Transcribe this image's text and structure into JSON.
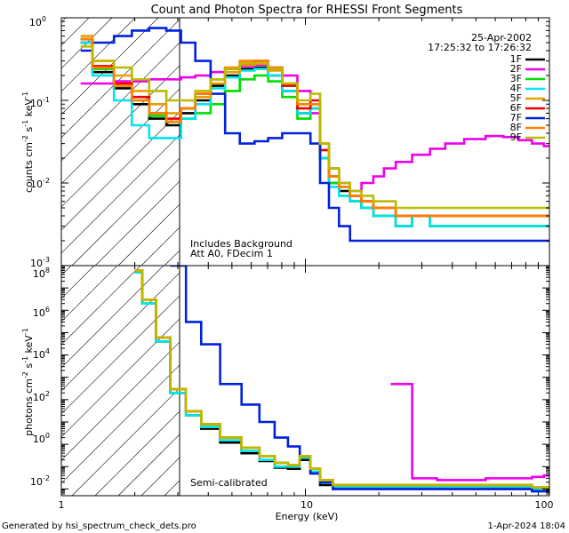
{
  "title": "Count and Photon Spectra for RHESSI Front Segments",
  "date_label": "25-Apr-2002",
  "time_range": "17:25:32 to 17:26:32",
  "footer_left": "Generated by hsi_spectrum_check_dets.pro",
  "footer_right": "1-Apr-2024 18:04",
  "xlabel": "Energy (keV)",
  "colors": {
    "1F": "#000000",
    "2F": "#ee00ee",
    "3F": "#00dd00",
    "4F": "#00e5ee",
    "5F": "#e8a000",
    "6F": "#ee0000",
    "7F": "#0022dd",
    "8F": "#ff8000",
    "9F": "#bbbb00"
  },
  "chart_data": [
    {
      "type": "line",
      "name": "count-spectra",
      "ylabel_main": "counts cm",
      "ylabel_units": "s",
      "ylabel_tail": " keV",
      "ylabel_exp": "-2",
      "ylabel_exp2": "-1",
      "ylabel_exp3": "-1",
      "xscale": "log",
      "yscale": "log",
      "xlim": [
        1,
        100
      ],
      "ylim": [
        0.001,
        1
      ],
      "x_tick_labels": [
        "1",
        "10",
        "100"
      ],
      "y_tick_labels": [
        "10^-3",
        "10^-2",
        "10^-1",
        "10^0"
      ],
      "annotations": [
        "Includes Background",
        "Att A0, FDecim  1"
      ],
      "legend_location": "top-right",
      "x": [
        1.2,
        1.5,
        1.8,
        2.1,
        2.5,
        2.9,
        3.3,
        3.8,
        4.4,
        5.0,
        5.8,
        6.6,
        7.5,
        8.6,
        10.0,
        11.0,
        12.0,
        13.0,
        14.5,
        16.0,
        18.0,
        20.0,
        22.0,
        25.0,
        30.0,
        35.0,
        40.0,
        50.0,
        60.0,
        70.0,
        80.0,
        90.0,
        100.0
      ],
      "series": [
        {
          "name": "1F",
          "values": [
            0.5,
            0.22,
            0.14,
            0.09,
            0.06,
            0.05,
            0.07,
            0.1,
            0.15,
            0.2,
            0.24,
            0.25,
            0.2,
            0.13,
            0.07,
            0.08,
            0.02,
            0.01,
            0.008,
            0.006,
            0.005,
            0.004,
            0.004,
            0.003,
            0.004,
            0.003,
            0.003,
            0.003,
            0.003,
            0.003,
            0.003,
            0.003,
            0.003
          ]
        },
        {
          "name": "2F",
          "values": [
            0.16,
            0.16,
            0.17,
            0.17,
            0.18,
            0.18,
            0.19,
            0.2,
            0.22,
            0.24,
            0.26,
            0.27,
            0.25,
            0.2,
            0.13,
            0.07,
            0.03,
            0.015,
            0.01,
            0.008,
            0.01,
            0.012,
            0.015,
            0.018,
            0.022,
            0.026,
            0.03,
            0.034,
            0.037,
            0.036,
            0.033,
            0.03,
            0.028
          ]
        },
        {
          "name": "3F",
          "values": [
            0.55,
            0.24,
            0.15,
            0.1,
            0.065,
            0.055,
            0.06,
            0.07,
            0.09,
            0.13,
            0.18,
            0.2,
            0.17,
            0.11,
            0.06,
            0.08,
            0.02,
            0.01,
            0.007,
            0.006,
            0.005,
            0.004,
            0.004,
            0.003,
            0.004,
            0.003,
            0.003,
            0.003,
            0.003,
            0.003,
            0.003,
            0.003,
            0.003
          ]
        },
        {
          "name": "4F",
          "values": [
            0.5,
            0.2,
            0.1,
            0.05,
            0.035,
            0.035,
            0.06,
            0.09,
            0.14,
            0.19,
            0.23,
            0.24,
            0.2,
            0.13,
            0.07,
            0.08,
            0.02,
            0.009,
            0.007,
            0.006,
            0.005,
            0.004,
            0.004,
            0.003,
            0.004,
            0.003,
            0.003,
            0.003,
            0.003,
            0.003,
            0.003,
            0.003,
            0.003
          ]
        },
        {
          "name": "5F",
          "values": [
            0.6,
            0.3,
            0.2,
            0.13,
            0.09,
            0.07,
            0.08,
            0.11,
            0.16,
            0.22,
            0.27,
            0.28,
            0.23,
            0.15,
            0.08,
            0.09,
            0.025,
            0.012,
            0.009,
            0.007,
            0.006,
            0.005,
            0.005,
            0.004,
            0.004,
            0.004,
            0.004,
            0.004,
            0.004,
            0.004,
            0.004,
            0.004,
            0.004
          ]
        },
        {
          "name": "6F",
          "values": [
            0.55,
            0.26,
            0.16,
            0.11,
            0.07,
            0.06,
            0.08,
            0.12,
            0.18,
            0.24,
            0.28,
            0.3,
            0.24,
            0.15,
            0.08,
            0.1,
            0.025,
            0.012,
            0.009,
            0.007,
            0.006,
            0.005,
            0.005,
            0.004,
            0.004,
            0.004,
            0.004,
            0.004,
            0.004,
            0.004,
            0.004,
            0.004,
            0.004
          ]
        },
        {
          "name": "7F",
          "values": [
            0.4,
            0.5,
            0.6,
            0.7,
            0.75,
            0.7,
            0.5,
            0.3,
            0.12,
            0.04,
            0.03,
            0.032,
            0.035,
            0.04,
            0.04,
            0.03,
            0.01,
            0.005,
            0.003,
            0.002,
            0.002,
            0.002,
            0.002,
            0.002,
            0.002,
            0.002,
            0.002,
            0.002,
            0.002,
            0.002,
            0.002,
            0.002,
            0.002
          ]
        },
        {
          "name": "8F",
          "values": [
            0.55,
            0.25,
            0.15,
            0.1,
            0.07,
            0.055,
            0.08,
            0.12,
            0.18,
            0.25,
            0.3,
            0.3,
            0.25,
            0.16,
            0.09,
            0.09,
            0.03,
            0.012,
            0.009,
            0.007,
            0.006,
            0.005,
            0.005,
            0.004,
            0.004,
            0.004,
            0.004,
            0.004,
            0.004,
            0.004,
            0.004,
            0.004,
            0.004
          ]
        },
        {
          "name": "9F",
          "values": [
            0.45,
            0.3,
            0.25,
            0.18,
            0.13,
            0.1,
            0.1,
            0.13,
            0.18,
            0.24,
            0.28,
            0.28,
            0.24,
            0.16,
            0.1,
            0.12,
            0.03,
            0.015,
            0.01,
            0.008,
            0.007,
            0.006,
            0.006,
            0.005,
            0.005,
            0.005,
            0.005,
            0.005,
            0.005,
            0.005,
            0.005,
            0.005,
            0.005
          ]
        }
      ]
    },
    {
      "type": "line",
      "name": "photon-spectra",
      "ylabel_main": "photons cm",
      "ylabel_units": "s",
      "ylabel_tail": " keV",
      "ylabel_exp": "-2",
      "ylabel_exp2": "-1",
      "ylabel_exp3": "-1",
      "xscale": "log",
      "yscale": "log",
      "xlim": [
        1,
        100
      ],
      "ylim": [
        0.005,
        100000000
      ],
      "x_tick_labels": [
        "1",
        "10",
        "100"
      ],
      "y_tick_labels": [
        "10^-2",
        "10^0",
        "10^2",
        "10^4",
        "10^6",
        "10^8"
      ],
      "annotations": [
        "Semi-calibrated"
      ],
      "x": [
        2.0,
        2.3,
        2.6,
        3.0,
        3.5,
        4.0,
        5.0,
        6.0,
        7.0,
        8.0,
        9.0,
        10.0,
        11.0,
        12.0,
        14.0,
        16.0,
        20.0,
        25.0,
        30.0,
        40.0,
        50.0,
        60.0,
        70.0,
        80.0,
        90.0,
        100.0
      ],
      "series": [
        {
          "name": "1F",
          "values": [
            50000000,
            2000000,
            40000,
            200,
            20,
            5,
            1.2,
            0.4,
            0.18,
            0.09,
            0.08,
            0.2,
            0.05,
            0.015,
            0.01,
            0.01,
            0.01,
            0.01,
            0.01,
            0.01,
            0.01,
            0.01,
            0.01,
            0.01,
            0.008,
            0.008
          ]
        },
        {
          "name": "2F",
          "values": [
            null,
            null,
            null,
            null,
            null,
            null,
            null,
            null,
            null,
            null,
            null,
            null,
            null,
            null,
            null,
            null,
            null,
            500,
            0.03,
            0.025,
            0.025,
            0.03,
            0.03,
            0.03,
            0.035,
            0.04
          ]
        },
        {
          "name": "3F",
          "values": [
            50000000,
            2000000,
            40000,
            200,
            20,
            6,
            1.5,
            0.5,
            0.2,
            0.1,
            0.1,
            0.25,
            0.06,
            0.02,
            0.012,
            0.012,
            0.012,
            0.012,
            0.012,
            0.012,
            0.012,
            0.012,
            0.012,
            0.012,
            0.01,
            0.01
          ]
        },
        {
          "name": "4F",
          "values": [
            50000000,
            2000000,
            40000,
            200,
            20,
            6,
            1.5,
            0.5,
            0.2,
            0.1,
            0.1,
            0.25,
            0.06,
            0.02,
            0.012,
            0.012,
            0.012,
            0.012,
            0.012,
            0.012,
            0.012,
            0.012,
            0.012,
            0.012,
            0.01,
            0.01
          ]
        },
        {
          "name": "5F",
          "values": [
            60000000,
            3000000,
            60000,
            300,
            30,
            8,
            2,
            0.7,
            0.3,
            0.15,
            0.12,
            0.3,
            0.08,
            0.025,
            0.015,
            0.015,
            0.015,
            0.015,
            0.015,
            0.015,
            0.015,
            0.015,
            0.015,
            0.015,
            0.012,
            0.012
          ]
        },
        {
          "name": "6F",
          "values": [
            60000000,
            3000000,
            60000,
            300,
            30,
            8,
            2,
            0.7,
            0.3,
            0.15,
            0.12,
            0.3,
            0.08,
            0.025,
            0.015,
            0.015,
            0.015,
            0.015,
            0.015,
            0.015,
            0.015,
            0.015,
            0.015,
            0.015,
            0.012,
            0.012
          ]
        },
        {
          "name": "7F",
          "values": [
            null,
            null,
            null,
            100000000,
            300000,
            30000,
            500,
            60,
            10,
            2,
            0.8,
            0.3,
            0.05,
            0.02,
            0.01,
            0.01,
            0.01,
            0.01,
            0.01,
            0.01,
            0.01,
            0.01,
            0.01,
            0.01,
            0.008,
            0.008
          ]
        },
        {
          "name": "8F",
          "values": [
            60000000,
            3000000,
            60000,
            300,
            30,
            8,
            2,
            0.7,
            0.3,
            0.15,
            0.12,
            0.3,
            0.08,
            0.025,
            0.015,
            0.015,
            0.015,
            0.015,
            0.015,
            0.015,
            0.015,
            0.015,
            0.015,
            0.015,
            0.012,
            0.012
          ]
        },
        {
          "name": "9F",
          "values": [
            60000000,
            3000000,
            60000,
            300,
            30,
            8,
            2,
            0.7,
            0.3,
            0.15,
            0.12,
            0.3,
            0.08,
            0.025,
            0.015,
            0.015,
            0.015,
            0.015,
            0.015,
            0.015,
            0.015,
            0.015,
            0.015,
            0.015,
            0.012,
            0.012
          ]
        }
      ]
    }
  ]
}
